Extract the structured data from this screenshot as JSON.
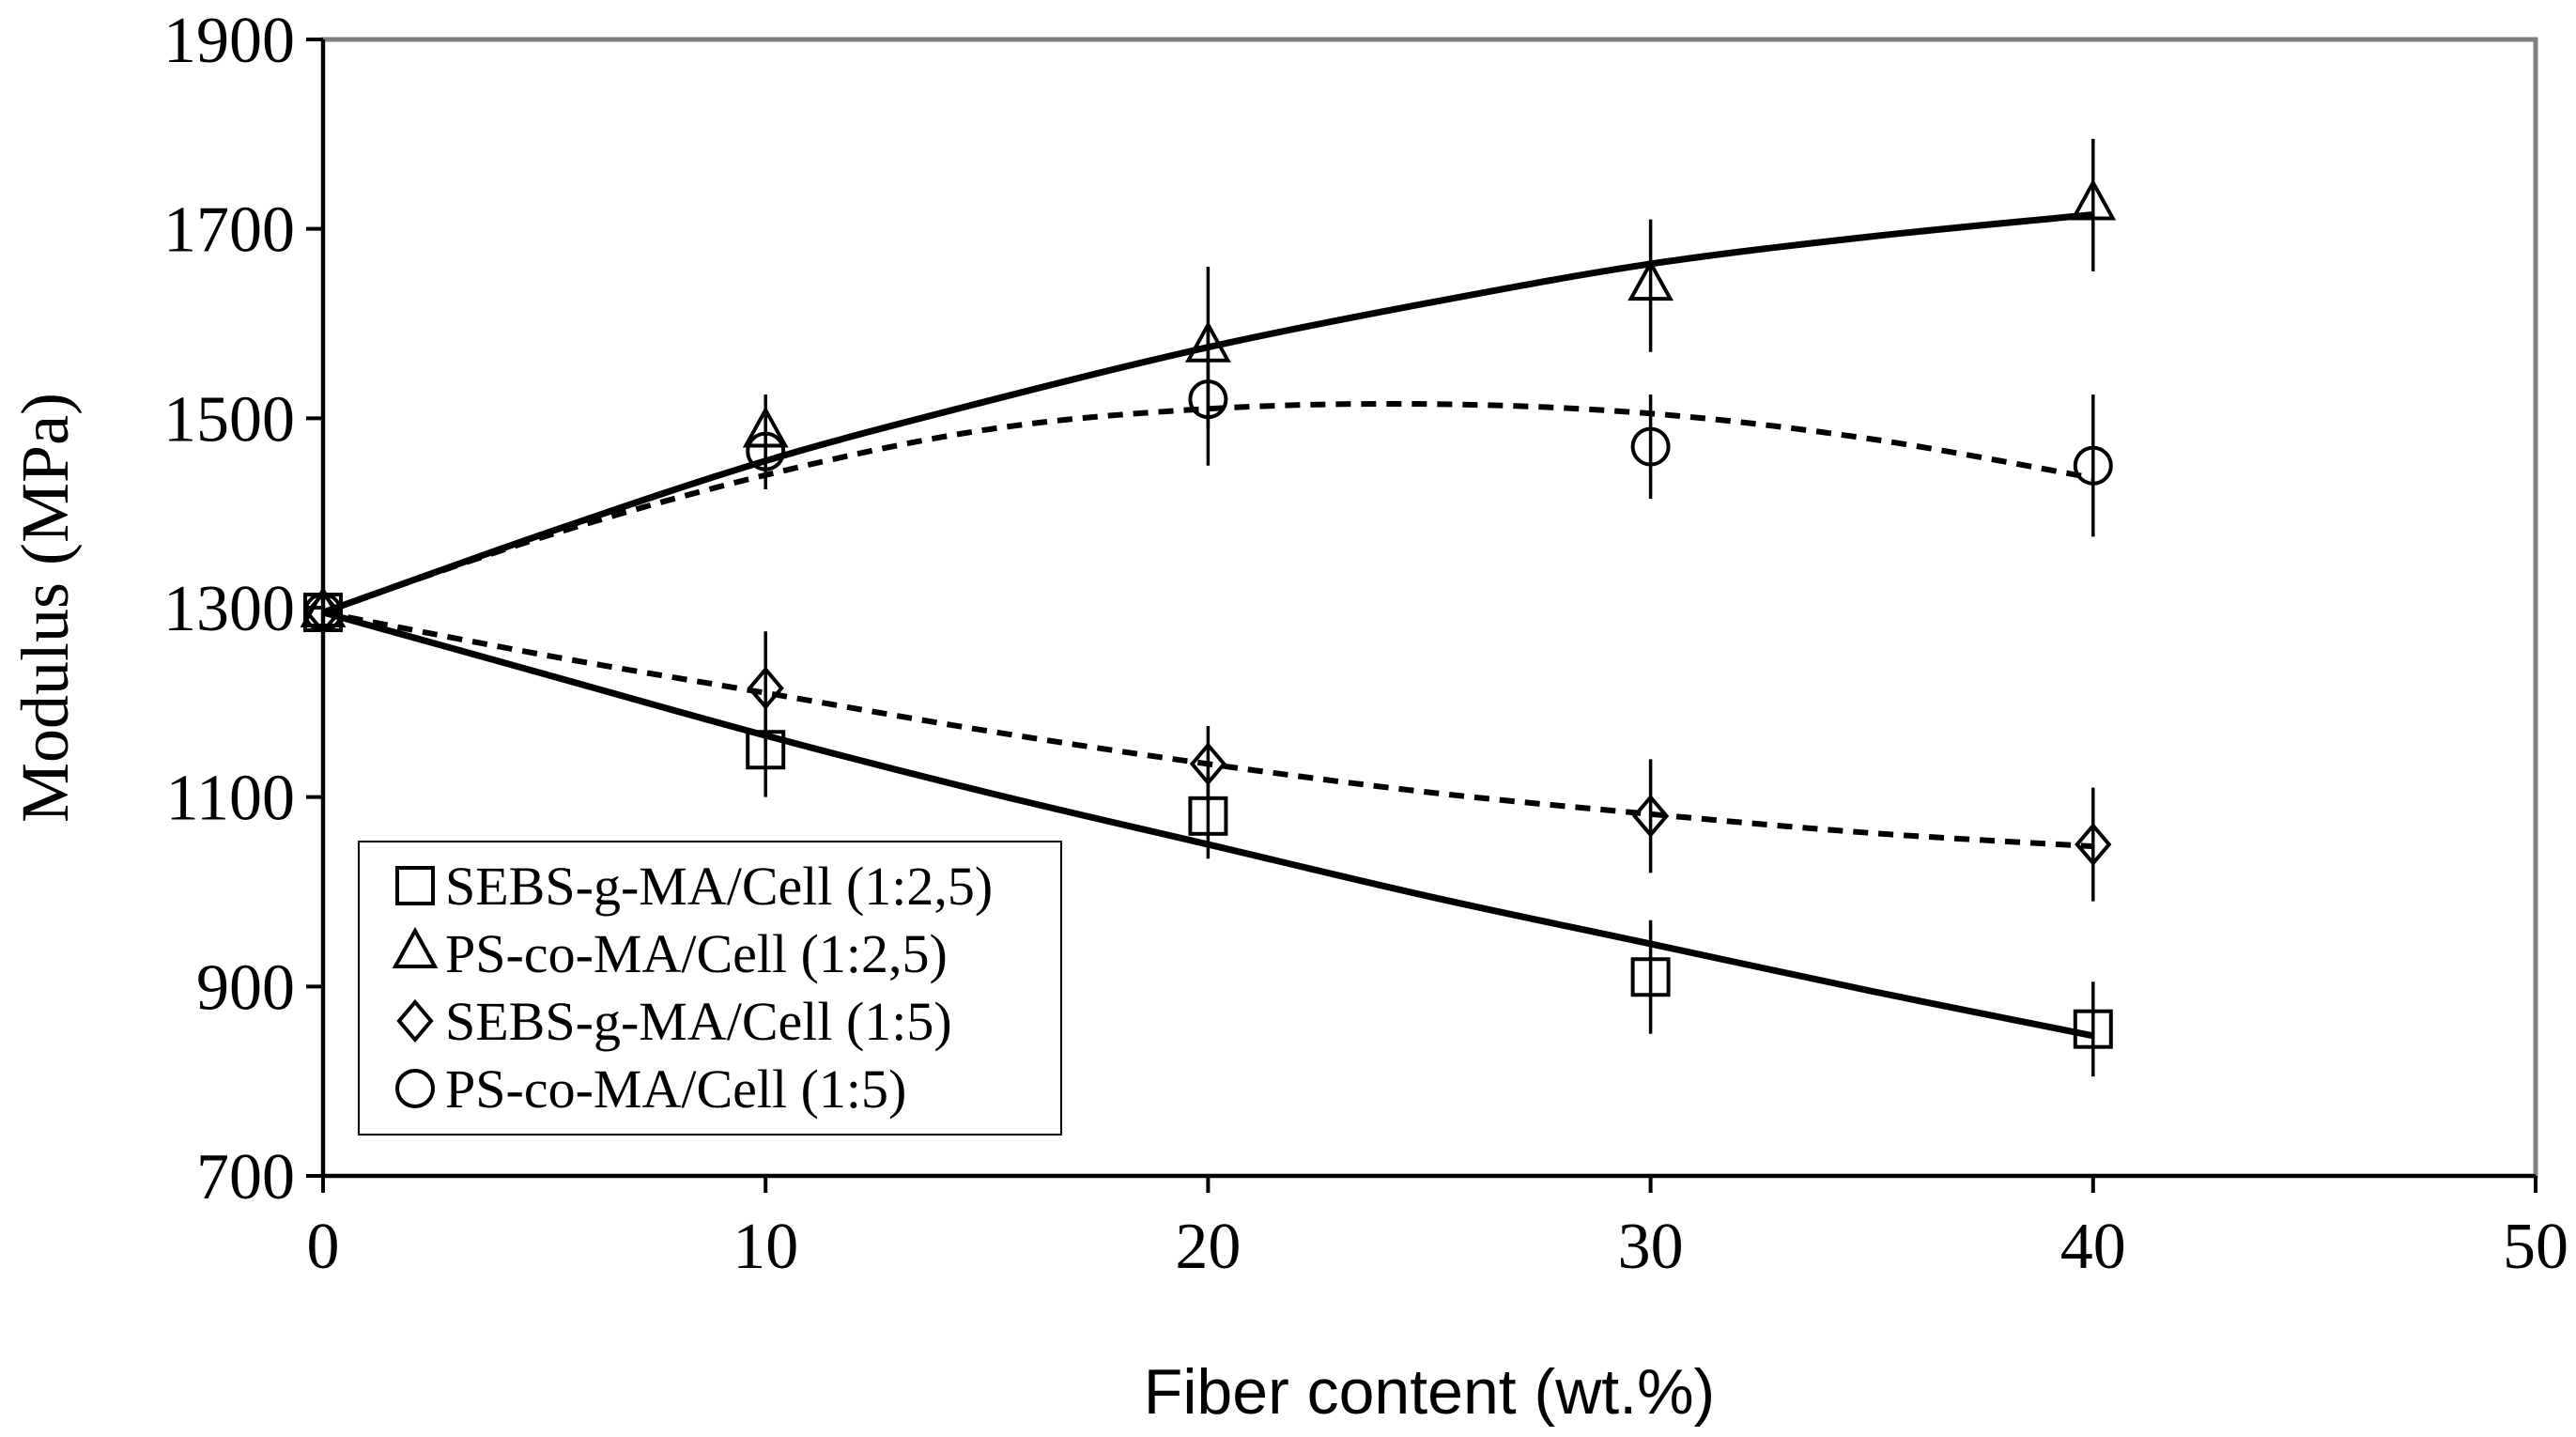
{
  "chart_data": {
    "type": "scatter",
    "title": "",
    "xlabel": "Fiber content (wt.%)",
    "ylabel": "Modulus (MPa)",
    "xlim": [
      0,
      50
    ],
    "ylim": [
      700,
      1900
    ],
    "x_ticks": [
      "0",
      "10",
      "20",
      "30",
      "40",
      "50"
    ],
    "y_ticks": [
      "700",
      "900",
      "1100",
      "1300",
      "1500",
      "1700",
      "1900"
    ],
    "grid": false,
    "legend_position": "bottom-left",
    "colors": {
      "ink": "#000000",
      "frame": "#808080",
      "background": "#ffffff"
    },
    "series": [
      {
        "name": "SEBS-g-MA/Cell (1:2,5)",
        "marker": "square",
        "x": [
          0,
          10,
          20,
          30,
          40
        ],
        "y": [
          1295,
          1150,
          1080,
          910,
          855
        ],
        "err": [
          8,
          50,
          45,
          60,
          50
        ],
        "trend": {
          "style": "solid",
          "x": [
            0,
            5,
            10,
            15,
            20,
            25,
            30,
            35,
            40
          ],
          "y": [
            1295,
            1230,
            1165,
            1105,
            1050,
            995,
            945,
            895,
            848
          ]
        }
      },
      {
        "name": "PS-co-MA/Cell (1:2,5)",
        "marker": "triangle",
        "x": [
          0,
          10,
          20,
          30,
          40
        ],
        "y": [
          1295,
          1485,
          1575,
          1640,
          1725
        ],
        "err": [
          8,
          40,
          85,
          70,
          70
        ],
        "trend": {
          "style": "solid",
          "x": [
            0,
            5,
            10,
            15,
            20,
            25,
            30,
            35,
            40
          ],
          "y": [
            1295,
            1378,
            1455,
            1518,
            1575,
            1622,
            1663,
            1692,
            1715
          ]
        }
      },
      {
        "name": "SEBS-g-MA/Cell (1:5)",
        "marker": "diamond",
        "x": [
          0,
          10,
          20,
          30,
          40
        ],
        "y": [
          1295,
          1215,
          1135,
          1080,
          1050
        ],
        "err": [
          8,
          60,
          40,
          60,
          60
        ],
        "trend": {
          "style": "dashed",
          "x": [
            0,
            5,
            10,
            15,
            20,
            25,
            30,
            35,
            40
          ],
          "y": [
            1295,
            1250,
            1210,
            1170,
            1135,
            1105,
            1082,
            1062,
            1048
          ]
        }
      },
      {
        "name": "PS-co-MA/Cell (1:5)",
        "marker": "circle",
        "x": [
          0,
          10,
          20,
          30,
          40
        ],
        "y": [
          1295,
          1465,
          1520,
          1470,
          1450
        ],
        "err": [
          8,
          40,
          70,
          55,
          75
        ],
        "trend": {
          "style": "dashed",
          "x": [
            0,
            5,
            10,
            15,
            20,
            25,
            30,
            35,
            40
          ],
          "y": [
            1295,
            1375,
            1440,
            1488,
            1510,
            1515,
            1505,
            1478,
            1437
          ]
        }
      }
    ]
  }
}
